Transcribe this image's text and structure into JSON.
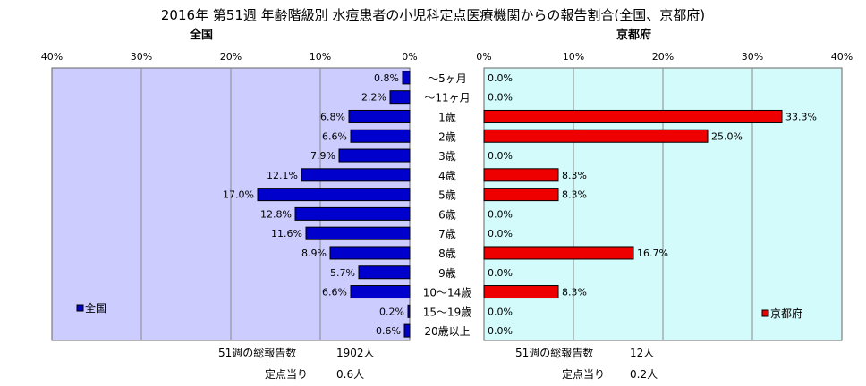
{
  "title": "2016年 第51週 年齢階級別 水痘患者の小児科定点医療機関からの報告割合(全国、京都府)",
  "panels": {
    "left_title": "全国",
    "right_title": "京都府"
  },
  "footer": {
    "left_total_label": "51週の総報告数",
    "left_total_value": "1902人",
    "left_per_label": "定点当り",
    "left_per_value": "0.6人",
    "right_total_label": "51週の総報告数",
    "right_total_value": "12人",
    "right_per_label": "定点当り",
    "right_per_value": "0.2人"
  },
  "colors": {
    "plot_bg_left": "#ccccff",
    "plot_bg_right": "#d4fbfb",
    "zenkoku_bar": "#0000cc",
    "kyoto_bar": "#ee0000",
    "grid": "#888888"
  },
  "chart_data": {
    "type": "bar",
    "orientation": "horizontal",
    "categories": [
      "～5ヶ月",
      "～11ヶ月",
      "1歳",
      "2歳",
      "3歳",
      "4歳",
      "5歳",
      "6歳",
      "7歳",
      "8歳",
      "9歳",
      "10～14歳",
      "15～19歳",
      "20歳以上"
    ],
    "xlim": [
      0,
      40
    ],
    "x_ticks": [
      "0%",
      "10%",
      "20%",
      "30%",
      "40%"
    ],
    "grid": true,
    "series": [
      {
        "name": "全国",
        "panel": "left",
        "legend_position": "bottom-left",
        "values": [
          0.8,
          2.2,
          6.8,
          6.6,
          7.9,
          12.1,
          17.0,
          12.8,
          11.6,
          8.9,
          5.7,
          6.6,
          0.2,
          0.6
        ],
        "labels": [
          "0.8%",
          "2.2%",
          "6.8%",
          "6.6%",
          "7.9%",
          "12.1%",
          "17.0%",
          "12.8%",
          "11.6%",
          "8.9%",
          "5.7%",
          "6.6%",
          "0.2%",
          "0.6%"
        ]
      },
      {
        "name": "京都府",
        "panel": "right",
        "legend_position": "bottom-right",
        "values": [
          0,
          0,
          33.3,
          25.0,
          0,
          8.3,
          8.3,
          0,
          0,
          16.7,
          0,
          8.3,
          0,
          0
        ],
        "labels": [
          "0.0%",
          "0.0%",
          "33.3%",
          "25.0%",
          "0.0%",
          "8.3%",
          "8.3%",
          "0.0%",
          "0.0%",
          "16.7%",
          "0.0%",
          "8.3%",
          "0.0%",
          "0.0%"
        ]
      }
    ]
  }
}
